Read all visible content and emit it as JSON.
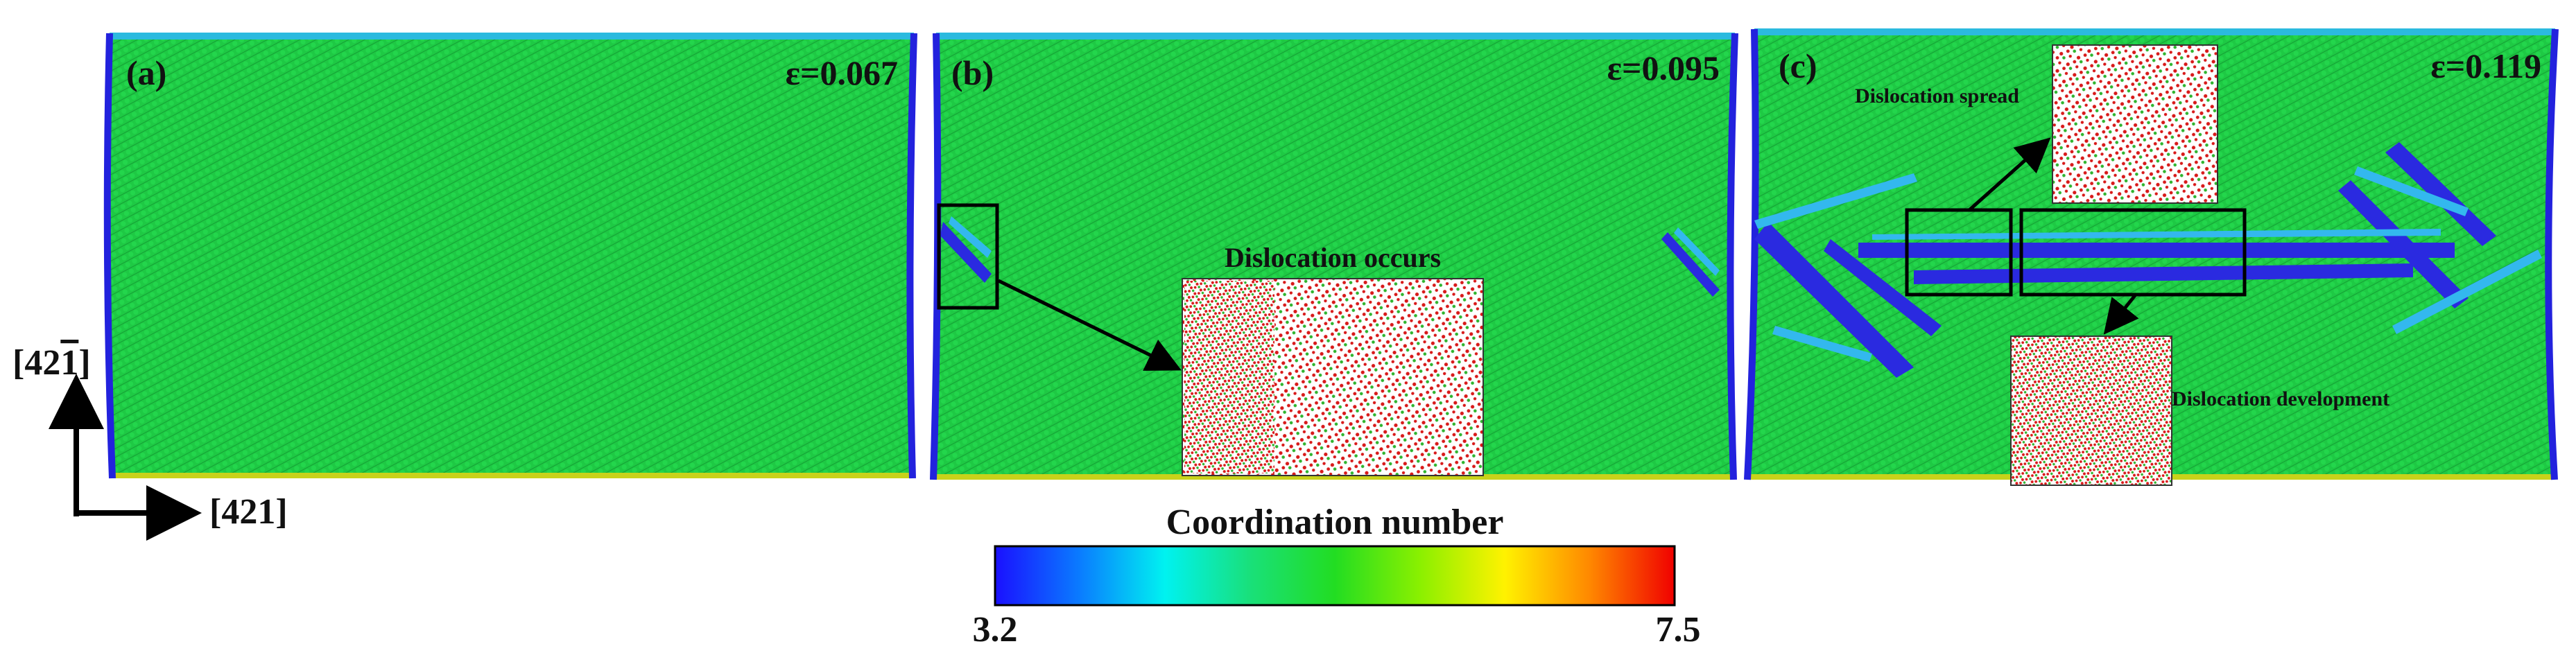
{
  "panels": [
    {
      "label": "(a)",
      "strain": "ε=0.067"
    },
    {
      "label": "(b)",
      "strain": "ε=0.095",
      "annotation": "Dislocation occurs"
    },
    {
      "label": "(c)",
      "strain": "ε=0.119",
      "annotation_spread": "Dislocation spread",
      "annotation_development": "Dislocation development"
    }
  ],
  "axes": {
    "vertical": "[42",
    "vertical_bar_digit": "1",
    "vertical_close": "]",
    "horizontal": "[421]"
  },
  "colorbar": {
    "title": "Coordination number",
    "min": "3.2",
    "max": "7.5",
    "stops": [
      "#1a10ff",
      "#0a7cff",
      "#00f2f0",
      "#19e07a",
      "#22dd22",
      "#8af000",
      "#fff200",
      "#ff8800",
      "#f00000"
    ]
  },
  "colors": {
    "lattice_green": "#1ec944",
    "lattice_lines": "#17a83a",
    "edge_blue": "#2222dd",
    "dislocation_blue": "#2a2ae0",
    "cyan": "#33b8ee",
    "atom_red": "#d81a1a",
    "atom_green": "#2fb42f"
  }
}
